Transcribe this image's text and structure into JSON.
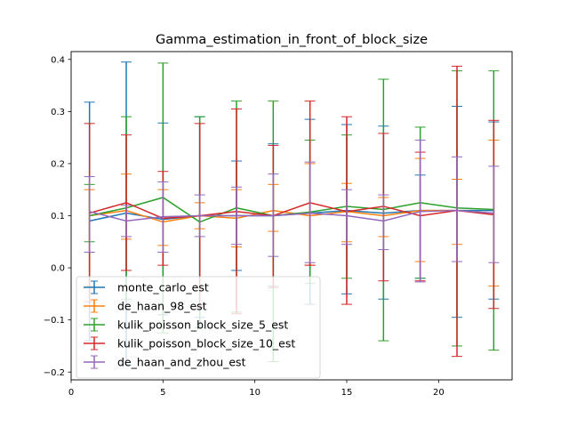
{
  "chart_data": {
    "type": "line",
    "title": "Gamma_estimation_in_front_of_block_size",
    "xlabel": "",
    "ylabel": "",
    "xlim": [
      0,
      24
    ],
    "ylim": [
      -0.215,
      0.415
    ],
    "xticks": [
      0,
      5,
      10,
      15,
      20
    ],
    "yticks": [
      -0.2,
      -0.1,
      0.0,
      0.1,
      0.2,
      0.3,
      0.4
    ],
    "ytick_labels": [
      "−0.2",
      "−0.1",
      "0.0",
      "0.1",
      "0.2",
      "0.3",
      "0.4"
    ],
    "grid": false,
    "legend_location": "lower left",
    "x": [
      1,
      3,
      5,
      7,
      9,
      11,
      13,
      15,
      17,
      19,
      21,
      23
    ],
    "series": [
      {
        "name": "monte_carlo_est",
        "color": "#1f77b4",
        "values": [
          0.09,
          0.105,
          0.093,
          0.1,
          0.1,
          0.1,
          0.105,
          0.11,
          0.105,
          0.11,
          0.11,
          0.11
        ],
        "lower": [
          -0.14,
          -0.185,
          -0.09,
          -0.095,
          -0.005,
          -0.035,
          -0.07,
          -0.05,
          -0.06,
          -0.02,
          -0.095,
          -0.06
        ],
        "upper": [
          0.318,
          0.395,
          0.278,
          0.29,
          0.205,
          0.238,
          0.285,
          0.275,
          0.272,
          0.178,
          0.31,
          0.28
        ]
      },
      {
        "name": "de_haan_98_est",
        "color": "#ff7f0e",
        "values": [
          0.1,
          0.11,
          0.088,
          0.1,
          0.095,
          0.11,
          0.1,
          0.108,
          0.1,
          0.11,
          0.11,
          0.105
        ],
        "lower": [
          -0.035,
          0.055,
          0.043,
          0.075,
          0.04,
          0.07,
          0.005,
          0.05,
          0.06,
          0.012,
          0.045,
          -0.035
        ],
        "upper": [
          0.15,
          0.18,
          0.15,
          0.125,
          0.15,
          0.16,
          0.2,
          0.162,
          0.135,
          0.21,
          0.17,
          0.245
        ]
      },
      {
        "name": "kulik_poisson_block_size_5_est",
        "color": "#2ca02c",
        "values": [
          0.1,
          0.115,
          0.135,
          0.088,
          0.115,
          0.1,
          0.107,
          0.118,
          0.112,
          0.125,
          0.115,
          0.112
        ],
        "lower": [
          0.05,
          -0.06,
          -0.125,
          -0.115,
          -0.085,
          -0.18,
          -0.03,
          -0.02,
          -0.14,
          -0.02,
          -0.15,
          -0.158
        ],
        "upper": [
          0.16,
          0.29,
          0.393,
          0.29,
          0.32,
          0.32,
          0.245,
          0.255,
          0.362,
          0.27,
          0.378,
          0.378
        ]
      },
      {
        "name": "kulik_poisson_block_size_10_est",
        "color": "#d62728",
        "values": [
          0.105,
          0.125,
          0.095,
          0.1,
          0.108,
          0.1,
          0.125,
          0.108,
          0.118,
          0.1,
          0.11,
          0.102
        ],
        "lower": [
          -0.065,
          -0.005,
          0.005,
          -0.075,
          -0.088,
          -0.038,
          0.005,
          -0.07,
          -0.025,
          -0.025,
          -0.17,
          -0.078
        ],
        "upper": [
          0.277,
          0.255,
          0.185,
          0.277,
          0.305,
          0.235,
          0.32,
          0.29,
          0.258,
          0.222,
          0.387,
          0.283
        ]
      },
      {
        "name": "de_haan_and_zhou_est",
        "color": "#9467bd",
        "values": [
          0.108,
          0.09,
          0.098,
          0.1,
          0.1,
          0.1,
          0.105,
          0.1,
          0.09,
          0.108,
          0.11,
          0.105
        ],
        "lower": [
          0.03,
          0.06,
          0.03,
          0.06,
          0.045,
          0.022,
          0.01,
          0.045,
          0.035,
          -0.027,
          0.012,
          0.01
        ],
        "upper": [
          0.175,
          0.12,
          0.165,
          0.14,
          0.155,
          0.18,
          0.203,
          0.15,
          0.14,
          0.245,
          0.213,
          0.195
        ]
      }
    ]
  }
}
